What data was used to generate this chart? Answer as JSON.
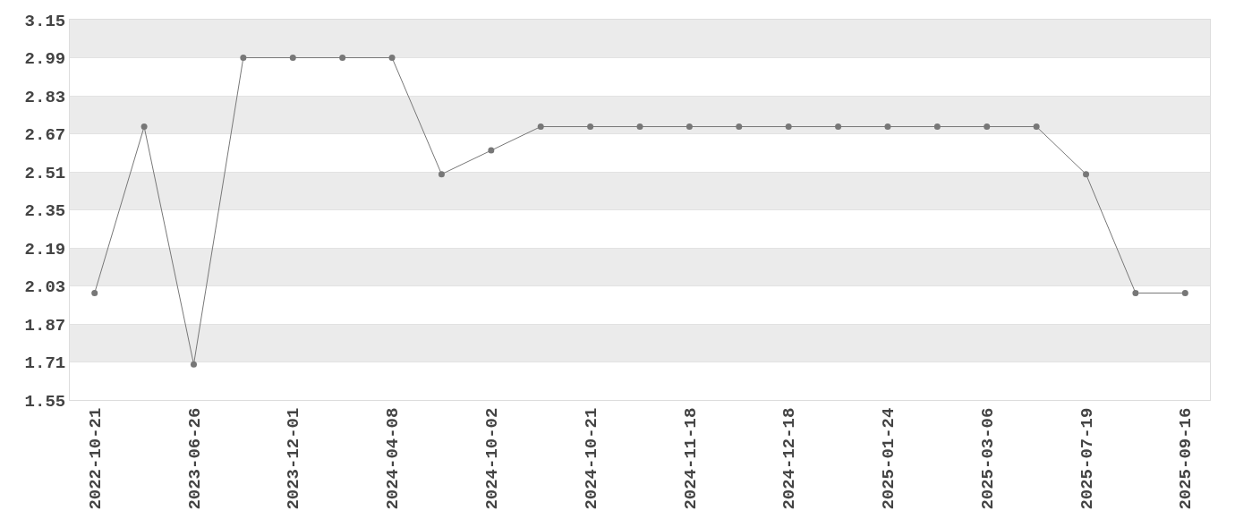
{
  "chart_data": {
    "type": "line",
    "categories": [
      "2022-10-21",
      null,
      "2023-06-26",
      null,
      "2023-12-01",
      null,
      "2024-04-08",
      null,
      "2024-10-02",
      null,
      "2024-10-21",
      null,
      "2024-11-18",
      null,
      "2024-12-18",
      null,
      "2025-01-24",
      null,
      "2025-03-06",
      null,
      "2025-07-19",
      null,
      "2025-09-16"
    ],
    "series": [
      {
        "color": "#777777",
        "values": [
          2.0,
          2.7,
          1.7,
          2.99,
          2.99,
          2.99,
          2.99,
          2.5,
          2.6,
          2.7,
          2.7,
          2.7,
          2.7,
          2.7,
          2.7,
          2.7,
          2.7,
          2.7,
          2.7,
          2.7,
          2.5,
          2.0,
          2.0
        ]
      }
    ],
    "ylim": [
      1.55,
      3.15
    ],
    "yticks": [
      1.55,
      1.71,
      1.87,
      2.03,
      2.19,
      2.35,
      2.51,
      2.67,
      2.83,
      2.99,
      3.15
    ],
    "grid": "y",
    "marker": "circle",
    "line_style": "solid"
  }
}
